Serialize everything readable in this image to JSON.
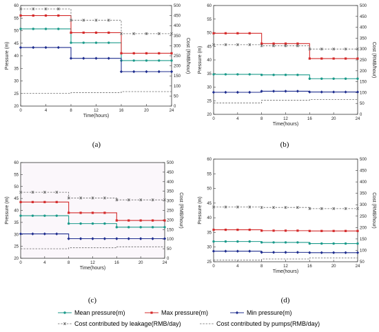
{
  "chart_data": [
    {
      "type": "line",
      "panel_label": "(a)",
      "xlabel": "Time(hours)",
      "ylabel_left": "Pressure (m)",
      "ylabel_right": "Cost (RMB/hour)",
      "xlim": [
        0,
        24
      ],
      "ylim_left": [
        20,
        60
      ],
      "ylim_right": [
        0,
        500
      ],
      "x_ticks": [
        0,
        4,
        8,
        12,
        16,
        20,
        24
      ],
      "y_left_ticks": [
        20,
        25,
        30,
        35,
        40,
        45,
        50,
        55,
        60
      ],
      "y_right_ticks": [
        0,
        50,
        100,
        150,
        200,
        250,
        300,
        350,
        400,
        450,
        500
      ],
      "x": [
        0,
        2,
        4,
        6,
        8,
        10,
        12,
        14,
        16,
        18,
        20,
        22,
        24
      ],
      "series": [
        {
          "name": "Mean pressure(m)",
          "axis": "left",
          "color": "#1a9a8a",
          "values": [
            50.7,
            50.7,
            50.7,
            50.7,
            45.2,
            45.2,
            45.2,
            45.2,
            38.1,
            38.1,
            38.1,
            38.1,
            38.1
          ]
        },
        {
          "name": "Max pressure(m)",
          "axis": "left",
          "color": "#d42a2a",
          "values": [
            56.0,
            56.0,
            56.0,
            56.0,
            49.2,
            49.2,
            49.2,
            49.2,
            41.0,
            41.0,
            41.0,
            41.0,
            41.0
          ]
        },
        {
          "name": "Min pressure(m)",
          "axis": "left",
          "color": "#1f2e8f",
          "values": [
            43.3,
            43.3,
            43.3,
            43.3,
            39.0,
            39.0,
            39.0,
            39.0,
            33.7,
            33.7,
            33.7,
            33.7,
            33.7
          ]
        },
        {
          "name": "Cost contributed by leakage(RMB/day)",
          "axis": "right",
          "color": "#666666",
          "values": [
            483,
            483,
            483,
            483,
            427,
            427,
            427,
            427,
            360,
            360,
            360,
            360,
            360
          ]
        },
        {
          "name": "Cost contributed by pumps(RMB/day)",
          "axis": "right",
          "color": "#666666",
          "values": [
            63,
            63,
            63,
            63,
            67,
            67,
            67,
            67,
            72,
            72,
            72,
            72,
            72
          ]
        }
      ]
    },
    {
      "type": "line",
      "panel_label": "(b)",
      "xlabel": "Time(hours)",
      "ylabel_left": "Pressure (m)",
      "ylabel_right": "Cost (RMB/hour)",
      "xlim": [
        0,
        24
      ],
      "ylim_left": [
        20,
        60
      ],
      "ylim_right": [
        0,
        500
      ],
      "x_ticks": [
        0,
        4,
        8,
        12,
        16,
        20,
        24
      ],
      "y_left_ticks": [
        20,
        25,
        30,
        35,
        40,
        45,
        50,
        55,
        60
      ],
      "y_right_ticks": [
        0,
        50,
        100,
        150,
        200,
        250,
        300,
        350,
        400,
        450,
        500
      ],
      "x": [
        0,
        2,
        4,
        6,
        8,
        10,
        12,
        14,
        16,
        18,
        20,
        22,
        24
      ],
      "series": [
        {
          "name": "Mean pressure(m)",
          "axis": "left",
          "color": "#1a9a8a",
          "values": [
            34.7,
            34.7,
            34.7,
            34.7,
            34.5,
            34.5,
            34.5,
            34.5,
            33.1,
            33.1,
            33.1,
            33.1,
            33.1
          ]
        },
        {
          "name": "Max pressure(m)",
          "axis": "left",
          "color": "#d42a2a",
          "values": [
            49.8,
            49.8,
            49.8,
            49.8,
            46.0,
            46.0,
            46.0,
            46.0,
            40.5,
            40.5,
            40.5,
            40.5,
            40.5
          ]
        },
        {
          "name": "Min pressure(m)",
          "axis": "left",
          "color": "#1f2e8f",
          "values": [
            28.1,
            28.1,
            28.1,
            28.1,
            28.5,
            28.5,
            28.5,
            28.5,
            28.2,
            28.2,
            28.2,
            28.2,
            28.2
          ]
        },
        {
          "name": "Cost contributed by leakage(RMB/day)",
          "axis": "right",
          "color": "#666666",
          "values": [
            320,
            320,
            320,
            320,
            315,
            315,
            315,
            315,
            300,
            300,
            300,
            300,
            300
          ]
        },
        {
          "name": "Cost contributed by pumps(RMB/day)",
          "axis": "right",
          "color": "#666666",
          "values": [
            52,
            52,
            52,
            52,
            65,
            65,
            65,
            65,
            68,
            68,
            68,
            68,
            68
          ]
        }
      ]
    },
    {
      "type": "line",
      "panel_label": "(c)",
      "xlabel": "Time(hours)",
      "ylabel_left": "Pressure (m)",
      "ylabel_right": "Cost (RMB/hour)",
      "xlim": [
        0,
        24
      ],
      "ylim_left": [
        20,
        60
      ],
      "ylim_right": [
        0,
        500
      ],
      "x_ticks": [
        0,
        4,
        8,
        12,
        16,
        20,
        24
      ],
      "y_left_ticks": [
        20,
        25,
        30,
        35,
        40,
        45,
        50,
        55,
        60
      ],
      "y_right_ticks": [
        0,
        50,
        100,
        150,
        200,
        250,
        300,
        350,
        400,
        450,
        500
      ],
      "x": [
        0,
        2,
        4,
        6,
        8,
        10,
        12,
        14,
        16,
        18,
        20,
        22,
        24
      ],
      "series": [
        {
          "name": "Mean pressure(m)",
          "axis": "left",
          "color": "#1a9a8a",
          "values": [
            37.8,
            37.8,
            37.8,
            37.8,
            34.5,
            34.5,
            34.5,
            34.5,
            33.0,
            33.0,
            33.0,
            33.0,
            33.0
          ]
        },
        {
          "name": "Max pressure(m)",
          "axis": "left",
          "color": "#d42a2a",
          "values": [
            43.5,
            43.5,
            43.5,
            43.5,
            39.0,
            39.0,
            39.0,
            39.0,
            35.8,
            35.8,
            35.8,
            35.8,
            35.8
          ]
        },
        {
          "name": "Min pressure(m)",
          "axis": "left",
          "color": "#1f2e8f",
          "values": [
            30.2,
            30.2,
            30.2,
            30.2,
            28.2,
            28.2,
            28.2,
            28.2,
            28.2,
            28.2,
            28.2,
            28.2,
            28.2
          ]
        },
        {
          "name": "Cost contributed by leakage(RMB/day)",
          "axis": "right",
          "color": "#666666",
          "values": [
            345,
            345,
            345,
            345,
            315,
            315,
            315,
            315,
            305,
            305,
            305,
            305,
            305
          ]
        },
        {
          "name": "Cost contributed by pumps(RMB/day)",
          "axis": "right",
          "color": "#666666",
          "values": [
            50,
            50,
            50,
            50,
            55,
            55,
            55,
            55,
            60,
            60,
            60,
            60,
            60
          ]
        }
      ]
    },
    {
      "type": "line",
      "panel_label": "(d)",
      "xlabel": "Time(hours)",
      "ylabel_left": "Pressure (m)",
      "ylabel_right": "Cost (RMB/hour)",
      "xlim": [
        0,
        24
      ],
      "ylim_left": [
        25,
        60
      ],
      "ylim_right": [
        50,
        500
      ],
      "x_ticks": [
        0,
        4,
        8,
        12,
        16,
        20,
        24
      ],
      "y_left_ticks": [
        25,
        30,
        35,
        40,
        45,
        50,
        55,
        60
      ],
      "y_right_ticks": [
        50,
        100,
        150,
        200,
        250,
        300,
        350,
        400,
        450,
        500
      ],
      "x": [
        0,
        2,
        4,
        6,
        8,
        10,
        12,
        14,
        16,
        18,
        20,
        22,
        24
      ],
      "series": [
        {
          "name": "Mean pressure(m)",
          "axis": "left",
          "color": "#1a9a8a",
          "values": [
            31.9,
            31.9,
            31.9,
            31.9,
            31.6,
            31.6,
            31.6,
            31.6,
            31.2,
            31.2,
            31.2,
            31.2,
            31.2
          ]
        },
        {
          "name": "Max pressure(m)",
          "axis": "left",
          "color": "#d42a2a",
          "values": [
            35.9,
            35.9,
            35.9,
            35.9,
            35.6,
            35.6,
            35.6,
            35.6,
            35.5,
            35.5,
            35.5,
            35.5,
            35.5
          ]
        },
        {
          "name": "Min pressure(m)",
          "axis": "left",
          "color": "#1f2e8f",
          "values": [
            28.6,
            28.6,
            28.6,
            28.6,
            28.2,
            28.2,
            28.2,
            28.2,
            28.1,
            28.1,
            28.1,
            28.1,
            28.1
          ]
        },
        {
          "name": "Cost contributed by leakage(RMB/day)",
          "axis": "right",
          "color": "#666666",
          "values": [
            290,
            290,
            290,
            290,
            288,
            288,
            288,
            288,
            283,
            283,
            283,
            283,
            283
          ]
        },
        {
          "name": "Cost contributed by pumps(RMB/day)",
          "axis": "right",
          "color": "#666666",
          "values": [
            57,
            57,
            57,
            57,
            62,
            62,
            62,
            62,
            67,
            67,
            67,
            67,
            67
          ]
        }
      ]
    }
  ],
  "legend": [
    {
      "label": "Mean pressure(m)",
      "color": "#1a9a8a",
      "style": "solid",
      "marker": "dot"
    },
    {
      "label": "Max pressure(m)",
      "color": "#d42a2a",
      "style": "solid",
      "marker": "square"
    },
    {
      "label": "Min pressure(m)",
      "color": "#1f2e8f",
      "style": "solid",
      "marker": "diamond"
    },
    {
      "label": "Cost contributed by leakage(RMB/day)",
      "color": "#666666",
      "style": "dashed",
      "marker": "star"
    },
    {
      "label": "Cost contributed by pumps(RMB/day)",
      "color": "#666666",
      "style": "dashed",
      "marker": "none"
    }
  ]
}
